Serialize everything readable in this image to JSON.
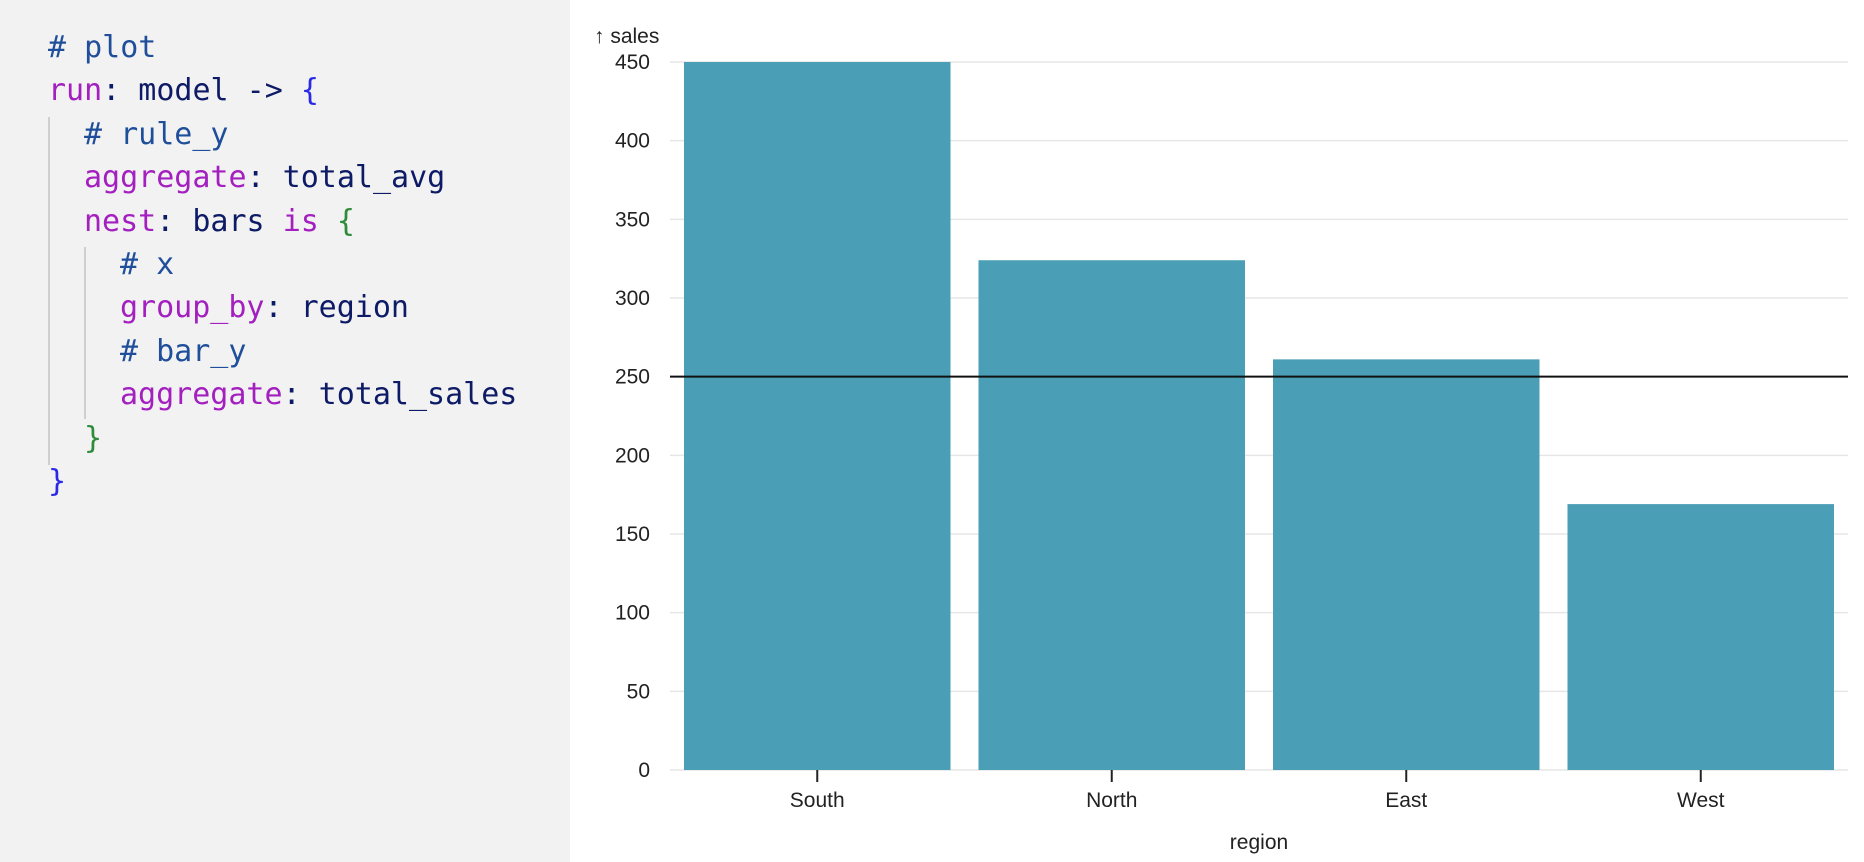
{
  "code": {
    "lines": [
      [
        {
          "text": "# plot",
          "color": "#1f4e9a"
        }
      ],
      [
        {
          "text": "run",
          "color": "#a31fbf"
        },
        {
          "text": ": model -> ",
          "color": "#0d1a66"
        },
        {
          "text": "{",
          "color": "#2a2ae6"
        }
      ],
      [
        {
          "text": "# rule_y",
          "color": "#1f4e9a"
        }
      ],
      [
        {
          "text": "aggregate",
          "color": "#a31fbf"
        },
        {
          "text": ": total_avg",
          "color": "#0d1a66"
        }
      ],
      [
        {
          "text": "nest",
          "color": "#a31fbf"
        },
        {
          "text": ": bars ",
          "color": "#0d1a66"
        },
        {
          "text": "is",
          "color": "#a31fbf"
        },
        {
          "text": " {",
          "color": "#2e8b3a"
        }
      ],
      [
        {
          "text": "# x",
          "color": "#1f4e9a"
        }
      ],
      [
        {
          "text": "group_by",
          "color": "#a31fbf"
        },
        {
          "text": ": region",
          "color": "#0d1a66"
        }
      ],
      [
        {
          "text": "# bar_y",
          "color": "#1f4e9a"
        }
      ],
      [
        {
          "text": "aggregate",
          "color": "#a31fbf"
        },
        {
          "text": ": total_sales",
          "color": "#0d1a66"
        }
      ],
      [
        {
          "text": "}",
          "color": "#2e8b3a"
        }
      ],
      [
        {
          "text": "}",
          "color": "#2a2ae6"
        }
      ]
    ]
  },
  "chart_data": {
    "type": "bar",
    "categories": [
      "South",
      "North",
      "East",
      "West"
    ],
    "values": [
      450,
      324,
      261,
      169
    ],
    "rule_y": 250,
    "xlabel": "region",
    "ylabel": "↑ sales",
    "ylim": [
      0,
      450
    ],
    "yticks": [
      0,
      50,
      100,
      150,
      200,
      250,
      300,
      350,
      400,
      450
    ],
    "grid": true,
    "bar_color": "#4a9eb5",
    "rule_color": "#111111",
    "grid_color": "#e6e6e6"
  }
}
